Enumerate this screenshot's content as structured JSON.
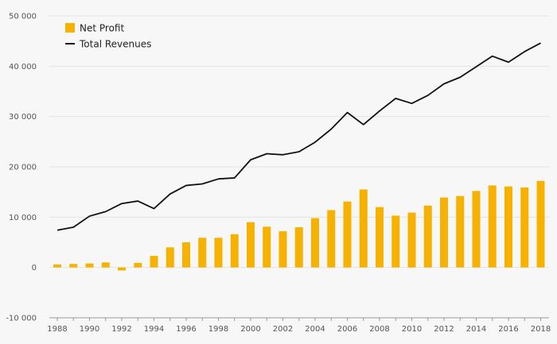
{
  "chart_data": {
    "type": "bar",
    "x": [
      "1988",
      "1989",
      "1990",
      "1991",
      "1992",
      "1993",
      "1994",
      "1995",
      "1996",
      "1997",
      "1998",
      "1999",
      "2000",
      "2001",
      "2002",
      "2003",
      "2004",
      "2005",
      "2006",
      "2007",
      "2008",
      "2009",
      "2010",
      "2011",
      "2012",
      "2013",
      "2014",
      "2015",
      "2016",
      "2017",
      "2018"
    ],
    "x_tick_labels": [
      "1988",
      "1990",
      "1992",
      "1994",
      "1996",
      "1998",
      "2000",
      "2002",
      "2004",
      "2006",
      "2008",
      "2010",
      "2012",
      "2014",
      "2016",
      "2018"
    ],
    "y_tick_labels": [
      "-10 000",
      "0",
      "10 000",
      "20 000",
      "30 000",
      "40 000",
      "50 000"
    ],
    "y_ticks": [
      -10000,
      0,
      10000,
      20000,
      30000,
      40000,
      50000
    ],
    "ylim": [
      -10000,
      50000
    ],
    "grid": true,
    "legend_position": "top-left",
    "series": [
      {
        "name": "Net Profit",
        "type": "bar",
        "color": "#f7b100",
        "values": [
          600,
          700,
          800,
          1000,
          -600,
          900,
          2300,
          4000,
          5000,
          5900,
          5900,
          6600,
          9000,
          8100,
          7200,
          8000,
          9800,
          11400,
          13100,
          15500,
          12000,
          10300,
          10900,
          12300,
          13900,
          14200,
          15200,
          16300,
          16100,
          15900,
          17200
        ]
      },
      {
        "name": "Total Revenues",
        "type": "line",
        "color": "#111111",
        "values": [
          7400,
          8000,
          10200,
          11100,
          12700,
          13200,
          11700,
          14600,
          16300,
          16600,
          17600,
          17800,
          21400,
          22600,
          22400,
          23000,
          24900,
          27500,
          30800,
          28400,
          31100,
          33600,
          32600,
          34200,
          36500,
          37800,
          39900,
          42000,
          40800,
          42900,
          44600
        ]
      }
    ]
  }
}
